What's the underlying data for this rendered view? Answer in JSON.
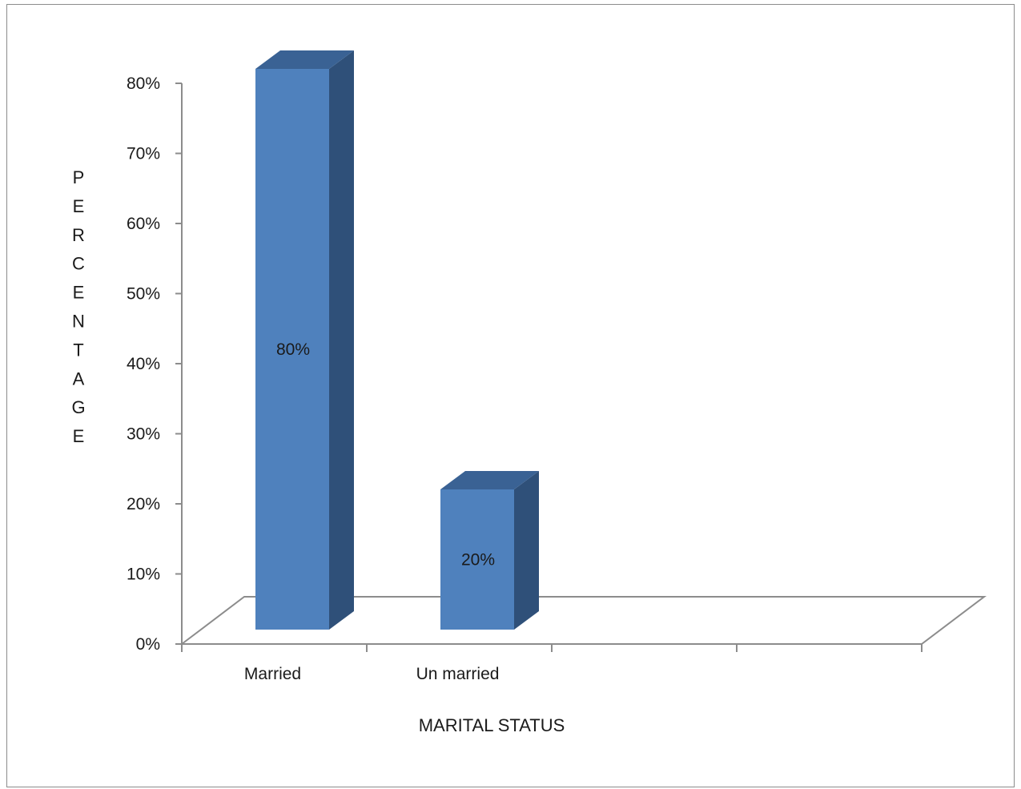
{
  "chart_data": {
    "type": "bar",
    "style": "3d-column",
    "categories": [
      "Married",
      "Un married",
      "",
      ""
    ],
    "values": [
      80,
      20,
      null,
      null
    ],
    "data_labels": [
      "80%",
      "20%",
      "",
      ""
    ],
    "title": "",
    "xlabel": "MARITAL STATUS",
    "ylabel": "PERCENTAGE",
    "ylim": [
      0,
      80
    ],
    "yticks": [
      0,
      10,
      20,
      30,
      40,
      50,
      60,
      70,
      80
    ],
    "ytick_labels": [
      "0%",
      "10%",
      "20%",
      "30%",
      "40%",
      "50%",
      "60%",
      "70%",
      "80%"
    ],
    "grid": false,
    "legend": "none",
    "colors": {
      "bar_front": "#4f81bd",
      "bar_side": "#2f5079",
      "bar_top": "#3a6294",
      "axis": "#8c8c8c"
    }
  }
}
